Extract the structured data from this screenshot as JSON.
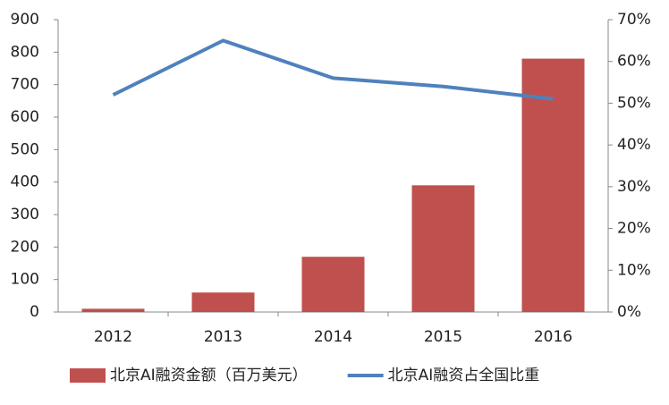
{
  "chart_data": {
    "type": "bar",
    "categories": [
      "2012",
      "2013",
      "2014",
      "2015",
      "2016"
    ],
    "series": [
      {
        "name": "北京AI融资金额（百万美元）",
        "type": "bar",
        "color": "#c0504d",
        "values": [
          10,
          60,
          170,
          390,
          780
        ]
      },
      {
        "name": "北京AI融资占全国比重",
        "type": "line",
        "axis": "y2",
        "color": "#4f81bd",
        "values": [
          52,
          65,
          56,
          54,
          51
        ]
      }
    ],
    "ylim": [
      0,
      900
    ],
    "yticks": [
      0,
      100,
      200,
      300,
      400,
      500,
      600,
      700,
      800,
      900
    ],
    "y2lim": [
      0,
      70
    ],
    "y2ticks": [
      {
        "value": 0,
        "label": "0%"
      },
      {
        "value": 10,
        "label": "10%"
      },
      {
        "value": 20,
        "label": "20%"
      },
      {
        "value": 30,
        "label": "30%"
      },
      {
        "value": 40,
        "label": "40%"
      },
      {
        "value": 50,
        "label": "50%"
      },
      {
        "value": 60,
        "label": "60%"
      },
      {
        "value": 70,
        "label": "70%"
      }
    ],
    "grid": false,
    "legend": "bottom"
  }
}
